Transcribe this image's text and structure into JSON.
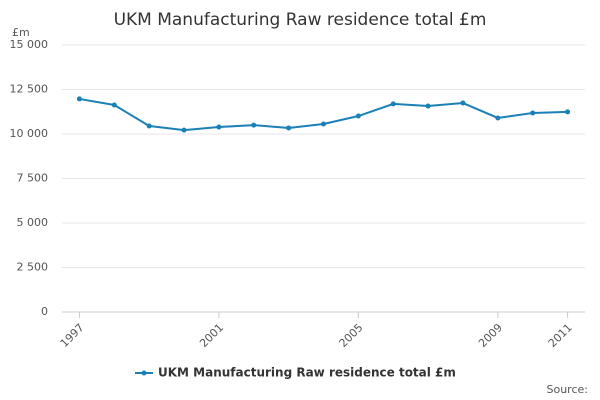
{
  "chart_data": {
    "type": "line",
    "title": "UKM Manufacturing Raw residence total £m",
    "y_unit": "£m",
    "source": "Source:",
    "x": [
      1997,
      1998,
      1999,
      2000,
      2001,
      2002,
      2003,
      2004,
      2005,
      2006,
      2007,
      2008,
      2009,
      2010,
      2011
    ],
    "series": [
      {
        "name": "UKM Manufacturing Raw residence total £m",
        "color": "#1a80b6",
        "values": [
          11970,
          11630,
          10450,
          10220,
          10390,
          10500,
          10340,
          10560,
          11010,
          11690,
          11570,
          11740,
          10900,
          11180,
          11240
        ]
      }
    ],
    "xlim": [
      1996.5,
      2011.5
    ],
    "xticks": [
      1997,
      2001,
      2005,
      2009,
      2011
    ],
    "ylim": [
      0,
      15000
    ],
    "yticks": [
      0,
      {
        "value": 2500,
        "label": "2 500"
      },
      {
        "value": 5000,
        "label": "5 000"
      },
      {
        "value": 7500,
        "label": "7 500"
      },
      {
        "value": 10000,
        "label": "10 000"
      },
      {
        "value": 12500,
        "label": "12 500"
      },
      {
        "value": 15000,
        "label": "15 000"
      }
    ],
    "grid": true
  }
}
